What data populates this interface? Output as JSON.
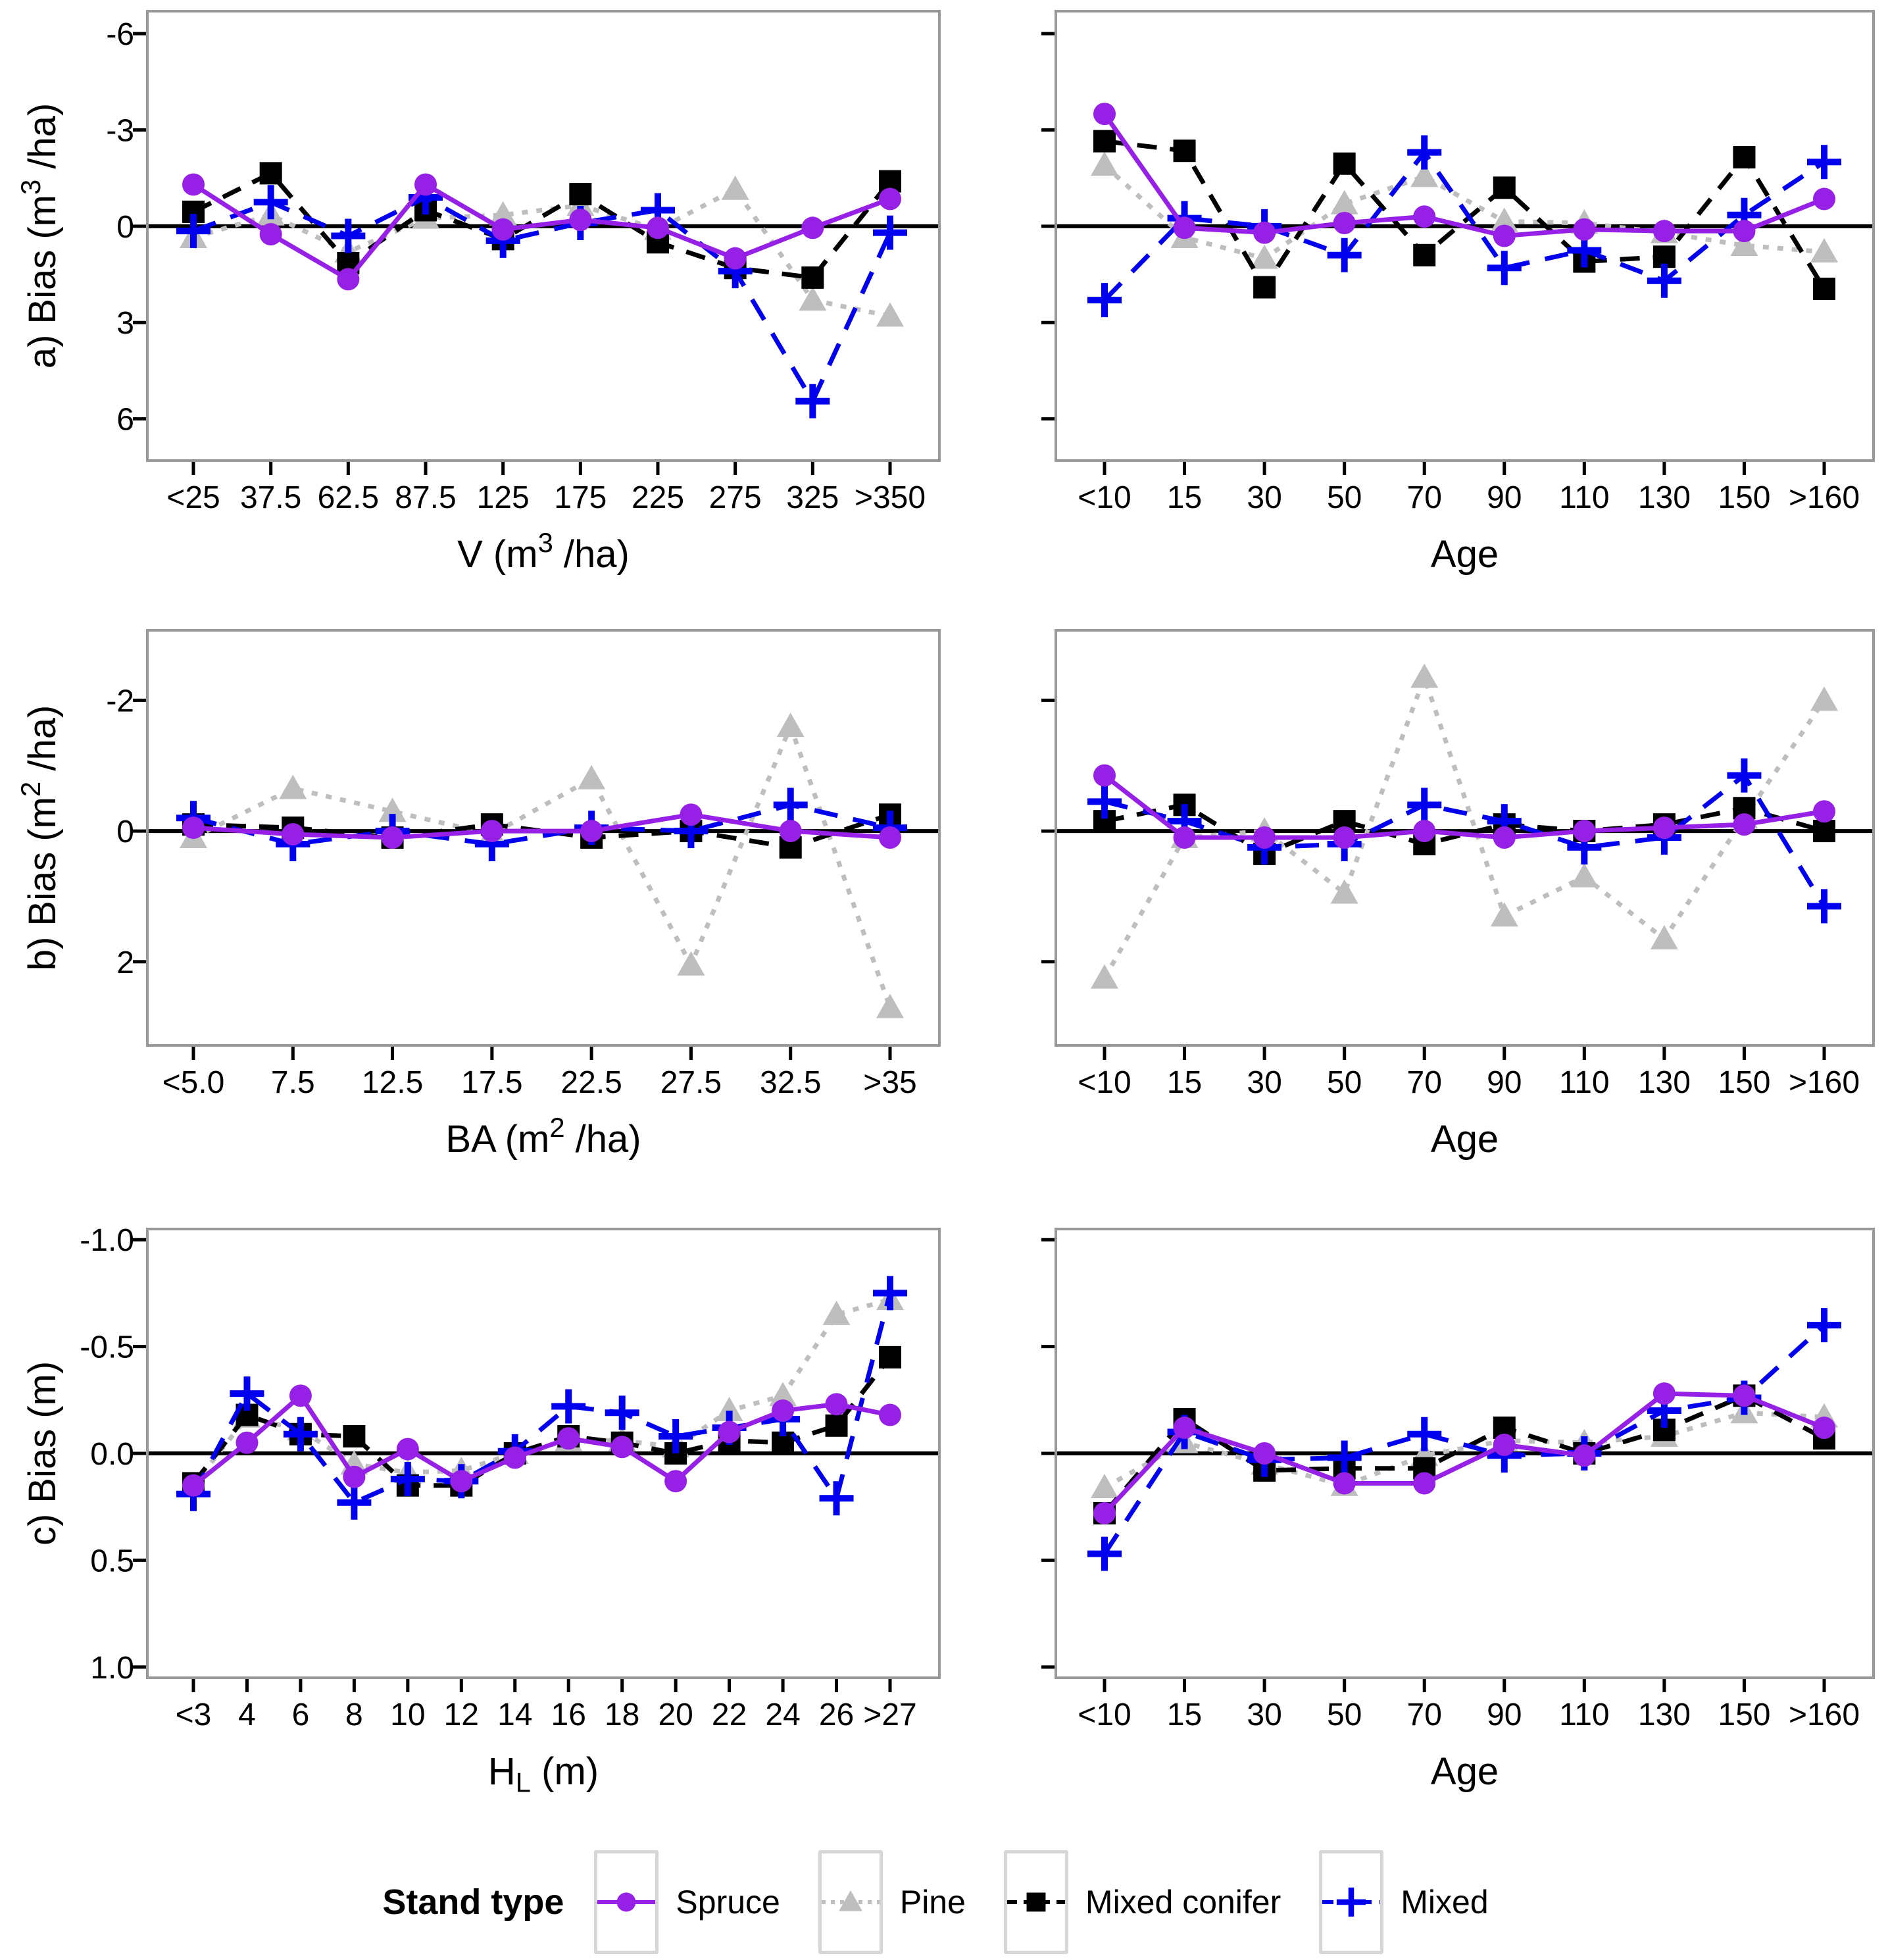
{
  "figure": {
    "background": "#ffffff",
    "panel_border_color": "#999999",
    "zero_line_color": "#000000"
  },
  "legend": {
    "title": "Stand type",
    "entries": [
      {
        "label": "Spruce",
        "color": "#9620E6",
        "marker": "circle",
        "dash": "solid"
      },
      {
        "label": "Pine",
        "color": "#BEBEBE",
        "marker": "triangle",
        "dash": "dotted"
      },
      {
        "label": "Mixed conifer",
        "color": "#000000",
        "marker": "square",
        "dash": "dashed"
      },
      {
        "label": "Mixed",
        "color": "#0000EE",
        "marker": "plus",
        "dash": "longdash"
      }
    ]
  },
  "chart_data": [
    {
      "id": "a_left",
      "row": "a",
      "col": "left",
      "type": "line",
      "ylabel": "a) Bias (m³ /ha)",
      "xlabel": "V (m³ /ha)",
      "show_y_labels": true,
      "grid": false,
      "y_axis_inverted": true,
      "yticks": [
        -6,
        -3,
        0,
        3,
        6
      ],
      "ylim": [
        -6.7,
        7.3
      ],
      "categories": [
        "<25",
        "37.5",
        "62.5",
        "87.5",
        "125",
        "175",
        "225",
        "275",
        "325",
        ">350"
      ],
      "series": [
        {
          "name": "Spruce",
          "values": [
            -1.3,
            0.25,
            1.65,
            -1.3,
            0.1,
            -0.2,
            0.05,
            1.0,
            0.05,
            -0.85
          ]
        },
        {
          "name": "Pine",
          "values": [
            0.35,
            -0.35,
            0.8,
            -0.25,
            -0.35,
            -0.65,
            0.1,
            -1.15,
            2.3,
            2.8
          ]
        },
        {
          "name": "Mixed conifer",
          "values": [
            -0.45,
            -1.65,
            1.15,
            -0.5,
            0.4,
            -1.0,
            0.5,
            1.3,
            1.6,
            -1.4
          ]
        },
        {
          "name": "Mixed",
          "values": [
            0.15,
            -0.75,
            0.3,
            -0.9,
            0.45,
            -0.1,
            -0.5,
            1.4,
            5.45,
            0.2
          ]
        }
      ]
    },
    {
      "id": "a_right",
      "row": "a",
      "col": "right",
      "type": "line",
      "ylabel": "",
      "xlabel": "Age",
      "show_y_labels": false,
      "grid": false,
      "y_axis_inverted": true,
      "yticks": [
        -6,
        -3,
        0,
        3,
        6
      ],
      "ylim": [
        -6.7,
        7.3
      ],
      "categories": [
        "<10",
        "15",
        "30",
        "50",
        "70",
        "90",
        "110",
        "130",
        "150",
        ">160"
      ],
      "series": [
        {
          "name": "Spruce",
          "values": [
            -3.5,
            0.05,
            0.2,
            -0.1,
            -0.3,
            0.3,
            0.1,
            0.15,
            0.15,
            -0.85
          ]
        },
        {
          "name": "Pine",
          "values": [
            -1.9,
            0.35,
            1.0,
            -0.7,
            -1.55,
            -0.15,
            -0.1,
            0.2,
            0.6,
            0.8
          ]
        },
        {
          "name": "Mixed conifer",
          "values": [
            -2.65,
            -2.35,
            1.9,
            -1.95,
            0.9,
            -1.2,
            1.1,
            0.95,
            -2.15,
            1.95
          ]
        },
        {
          "name": "Mixed",
          "values": [
            2.3,
            -0.25,
            0.0,
            0.9,
            -2.3,
            1.3,
            0.75,
            1.7,
            -0.35,
            -2.0
          ]
        }
      ]
    },
    {
      "id": "b_left",
      "row": "b",
      "col": "left",
      "type": "line",
      "ylabel": "b) Bias (m² /ha)",
      "xlabel": "BA (m² /ha)",
      "show_y_labels": true,
      "grid": false,
      "y_axis_inverted": true,
      "yticks": [
        -2,
        0,
        2
      ],
      "ylim": [
        -3.07,
        3.28
      ],
      "categories": [
        "<5.0",
        "7.5",
        "12.5",
        "17.5",
        "22.5",
        "27.5",
        "32.5",
        ">35"
      ],
      "series": [
        {
          "name": "Spruce",
          "values": [
            -0.05,
            0.05,
            0.1,
            0.0,
            0.0,
            -0.25,
            0.0,
            0.1
          ]
        },
        {
          "name": "Pine",
          "values": [
            0.1,
            -0.65,
            -0.3,
            0.05,
            -0.8,
            2.05,
            -1.6,
            2.7
          ]
        },
        {
          "name": "Mixed conifer",
          "values": [
            -0.1,
            -0.05,
            0.1,
            -0.1,
            0.1,
            0.0,
            0.25,
            -0.25
          ]
        },
        {
          "name": "Mixed",
          "values": [
            -0.2,
            0.2,
            0.0,
            0.2,
            -0.05,
            0.0,
            -0.4,
            -0.05
          ]
        }
      ]
    },
    {
      "id": "b_right",
      "row": "b",
      "col": "right",
      "type": "line",
      "ylabel": "",
      "xlabel": "Age",
      "show_y_labels": false,
      "grid": false,
      "y_axis_inverted": true,
      "yticks": [
        -2,
        0,
        2
      ],
      "ylim": [
        -3.07,
        3.28
      ],
      "categories": [
        "<10",
        "15",
        "30",
        "50",
        "70",
        "90",
        "110",
        "130",
        "150",
        ">160"
      ],
      "series": [
        {
          "name": "Spruce",
          "values": [
            -0.85,
            0.1,
            0.1,
            0.1,
            0.0,
            0.1,
            0.0,
            -0.05,
            -0.1,
            -0.3
          ]
        },
        {
          "name": "Pine",
          "values": [
            2.25,
            0.1,
            0.0,
            0.95,
            -2.35,
            1.3,
            0.7,
            1.65,
            -0.2,
            -2.0
          ]
        },
        {
          "name": "Mixed conifer",
          "values": [
            -0.15,
            -0.4,
            0.35,
            -0.15,
            0.2,
            -0.1,
            0.0,
            -0.1,
            -0.35,
            0.0
          ]
        },
        {
          "name": "Mixed",
          "values": [
            -0.45,
            -0.15,
            0.25,
            0.2,
            -0.4,
            -0.15,
            0.25,
            0.1,
            -0.85,
            1.15
          ]
        }
      ]
    },
    {
      "id": "c_left",
      "row": "c",
      "col": "left",
      "type": "line",
      "ylabel": "c) Bias (m)",
      "xlabel": "H_L (m)",
      "show_y_labels": true,
      "grid": false,
      "y_axis_inverted": true,
      "yticks": [
        -1.0,
        -0.5,
        0.0,
        0.5,
        1.0
      ],
      "ylim": [
        -1.05,
        1.05
      ],
      "categories": [
        "<3",
        "4",
        "6",
        "8",
        "10",
        "12",
        "14",
        "16",
        "18",
        "20",
        "22",
        "24",
        "26",
        ">27"
      ],
      "series": [
        {
          "name": "Spruce",
          "values": [
            0.15,
            -0.05,
            -0.27,
            0.11,
            -0.02,
            0.13,
            0.02,
            -0.07,
            -0.03,
            0.13,
            -0.1,
            -0.2,
            -0.23,
            -0.18
          ]
        },
        {
          "name": "Pine",
          "values": [
            0.15,
            -0.17,
            -0.11,
            0.05,
            0.09,
            0.08,
            0.0,
            -0.06,
            -0.06,
            -0.03,
            -0.2,
            -0.27,
            -0.65,
            -0.72
          ]
        },
        {
          "name": "Mixed conifer",
          "values": [
            0.14,
            -0.18,
            -0.09,
            -0.08,
            0.15,
            0.15,
            0.0,
            -0.08,
            -0.05,
            0.0,
            -0.06,
            -0.05,
            -0.13,
            -0.45
          ]
        },
        {
          "name": "Mixed",
          "values": [
            0.19,
            -0.28,
            -0.09,
            0.23,
            0.12,
            0.13,
            -0.01,
            -0.22,
            -0.19,
            -0.08,
            -0.12,
            -0.16,
            0.21,
            -0.75
          ]
        }
      ]
    },
    {
      "id": "c_right",
      "row": "c",
      "col": "right",
      "type": "line",
      "ylabel": "",
      "xlabel": "Age",
      "show_y_labels": false,
      "grid": false,
      "y_axis_inverted": true,
      "yticks": [
        -1.0,
        -0.5,
        0.0,
        0.5,
        1.0
      ],
      "ylim": [
        -1.05,
        1.05
      ],
      "categories": [
        "<10",
        "15",
        "30",
        "50",
        "70",
        "90",
        "110",
        "130",
        "150",
        ">160"
      ],
      "series": [
        {
          "name": "Spruce",
          "values": [
            0.28,
            -0.12,
            0.0,
            0.14,
            0.14,
            -0.04,
            0.01,
            -0.28,
            -0.27,
            -0.12
          ]
        },
        {
          "name": "Pine",
          "values": [
            0.16,
            -0.05,
            0.05,
            0.15,
            0.01,
            -0.06,
            -0.05,
            -0.08,
            -0.19,
            -0.17
          ]
        },
        {
          "name": "Mixed conifer",
          "values": [
            0.28,
            -0.16,
            0.08,
            0.07,
            0.07,
            -0.12,
            0.0,
            -0.11,
            -0.27,
            -0.07
          ]
        },
        {
          "name": "Mixed",
          "values": [
            0.47,
            -0.1,
            0.03,
            0.02,
            -0.09,
            0.01,
            0.0,
            -0.2,
            -0.26,
            -0.6
          ]
        }
      ]
    }
  ]
}
